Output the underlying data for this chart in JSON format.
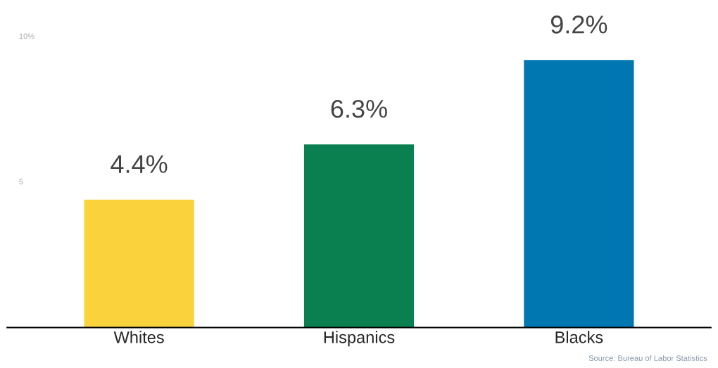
{
  "chart_data": {
    "type": "bar",
    "categories": [
      "Whites",
      "Hispanics",
      "Blacks"
    ],
    "values": [
      4.4,
      6.3,
      9.2
    ],
    "colors": [
      "#f9d23c",
      "#0a7f50",
      "#0077b0"
    ],
    "value_labels": [
      "4.4%",
      "6.3%",
      "9.2%"
    ],
    "ylim": [
      0,
      10
    ],
    "yticks": [
      5,
      {
        "value": 10,
        "label": "10%"
      }
    ],
    "grid": false,
    "annotations": [
      "Source: Bureau of Labor Statistics"
    ]
  }
}
